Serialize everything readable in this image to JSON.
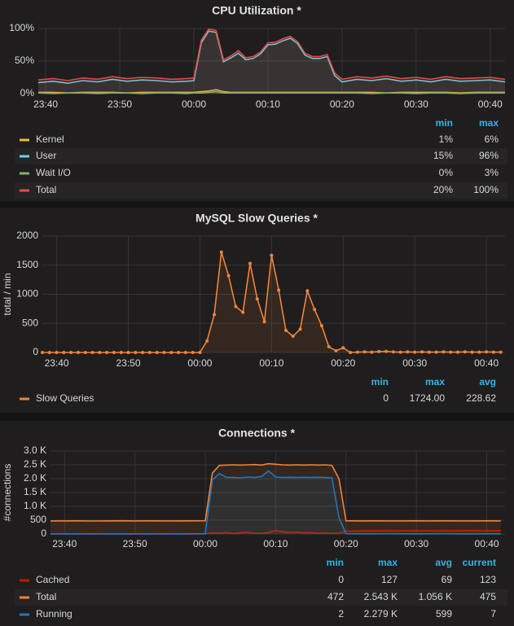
{
  "chart_data": [
    {
      "type": "line",
      "title": "CPU Utilization *",
      "x": [
        -21,
        -19,
        -17,
        -15,
        -13,
        -11,
        -9,
        -7,
        -5,
        -3,
        -1,
        0,
        1,
        2,
        3,
        4,
        5,
        6,
        7,
        8,
        9,
        10,
        11,
        12,
        13,
        14,
        15,
        16,
        17,
        18,
        19,
        20,
        22,
        24,
        26,
        28,
        30,
        32,
        34,
        36,
        38,
        40,
        42
      ],
      "xlim": [
        -21,
        42
      ],
      "xticks": [
        {
          "value": -20,
          "label": "23:40"
        },
        {
          "value": -10,
          "label": "23:50"
        },
        {
          "value": 0,
          "label": "00:00"
        },
        {
          "value": 10,
          "label": "00:10"
        },
        {
          "value": 20,
          "label": "00:20"
        },
        {
          "value": 30,
          "label": "00:30"
        },
        {
          "value": 40,
          "label": "00:40"
        }
      ],
      "ylim": [
        0,
        100
      ],
      "yticks": [
        {
          "value": 0,
          "label": "0%"
        },
        {
          "value": 50,
          "label": "50%"
        },
        {
          "value": 100,
          "label": "100%"
        }
      ],
      "grid": true,
      "legend": {
        "columns": [
          "min",
          "max"
        ]
      },
      "series": [
        {
          "name": "Kernel",
          "color": "#eab839",
          "legend_values": [
            "1%",
            "6%"
          ],
          "values": [
            2,
            2,
            1,
            2,
            2,
            2,
            1,
            2,
            2,
            2,
            2,
            2,
            3,
            4,
            6,
            3,
            2,
            2,
            2,
            2,
            2,
            2,
            2,
            2,
            2,
            2,
            2,
            2,
            2,
            2,
            2,
            2,
            2,
            2,
            1,
            2,
            2,
            2,
            2,
            1,
            2,
            2,
            2
          ]
        },
        {
          "name": "User",
          "color": "#6ed0e0",
          "legend_values": [
            "15%",
            "96%"
          ],
          "values": [
            17,
            19,
            16,
            20,
            18,
            22,
            19,
            21,
            20,
            18,
            19,
            20,
            78,
            96,
            94,
            49,
            55,
            62,
            52,
            54,
            61,
            75,
            76,
            81,
            85,
            77,
            59,
            54,
            54,
            57,
            28,
            18,
            22,
            20,
            23,
            19,
            21,
            18,
            22,
            19,
            20,
            21,
            18
          ]
        },
        {
          "name": "Wait I/O",
          "color": "#7eb26d",
          "legend_values": [
            "0%",
            "3%"
          ],
          "values": [
            1,
            0,
            1,
            1,
            0,
            1,
            1,
            0,
            1,
            1,
            0,
            1,
            1,
            2,
            3,
            1,
            1,
            1,
            1,
            1,
            1,
            1,
            1,
            1,
            1,
            1,
            1,
            1,
            1,
            1,
            1,
            1,
            1,
            0,
            1,
            1,
            0,
            1,
            1,
            0,
            1,
            1,
            1
          ]
        },
        {
          "name": "Total",
          "color": "#e24d42",
          "legend_values": [
            "20%",
            "100%"
          ],
          "values": [
            21,
            23,
            20,
            24,
            22,
            26,
            23,
            25,
            24,
            22,
            23,
            24,
            82,
            99,
            97,
            52,
            58,
            66,
            55,
            57,
            64,
            78,
            79,
            84,
            88,
            80,
            62,
            57,
            57,
            60,
            32,
            22,
            26,
            24,
            27,
            23,
            25,
            22,
            26,
            23,
            24,
            25,
            22
          ]
        }
      ]
    },
    {
      "type": "line",
      "title": "MySQL Slow Queries *",
      "y_label": "total / min",
      "points": true,
      "x": [
        -22,
        -21,
        -20,
        -19,
        -18,
        -17,
        -16,
        -15,
        -14,
        -13,
        -12,
        -11,
        -10,
        -9,
        -8,
        -7,
        -6,
        -5,
        -4,
        -3,
        -2,
        -1,
        0,
        1,
        2,
        3,
        4,
        5,
        6,
        7,
        8,
        9,
        10,
        11,
        12,
        13,
        14,
        15,
        16,
        17,
        18,
        19,
        20,
        21,
        22,
        23,
        24,
        25,
        26,
        27,
        28,
        29,
        30,
        31,
        32,
        33,
        34,
        35,
        36,
        37,
        38,
        39,
        40,
        41,
        42
      ],
      "xlim": [
        -22,
        42.6
      ],
      "xticks": [
        {
          "value": -20,
          "label": "23:40"
        },
        {
          "value": -10,
          "label": "23:50"
        },
        {
          "value": 0,
          "label": "00:00"
        },
        {
          "value": 10,
          "label": "00:10"
        },
        {
          "value": 20,
          "label": "00:20"
        },
        {
          "value": 30,
          "label": "00:30"
        },
        {
          "value": 40,
          "label": "00:40"
        }
      ],
      "ylim": [
        0,
        2000
      ],
      "yticks": [
        0,
        500,
        1000,
        1500,
        2000
      ],
      "grid": true,
      "legend": {
        "columns": [
          "min",
          "max",
          "avg"
        ]
      },
      "series": [
        {
          "name": "Slow Queries",
          "color": "#ef843c",
          "legend_values": [
            0,
            "1724.00",
            228.62
          ],
          "values": [
            0,
            0,
            0,
            0,
            0,
            0,
            0,
            0,
            0,
            0,
            0,
            0,
            0,
            0,
            0,
            0,
            0,
            0,
            0,
            0,
            0,
            0,
            0,
            200,
            650,
            1724,
            1320,
            790,
            690,
            1530,
            920,
            530,
            1670,
            1070,
            380,
            280,
            400,
            1060,
            740,
            460,
            100,
            30,
            80,
            0,
            5,
            10,
            5,
            15,
            20,
            10,
            5,
            10,
            5,
            10,
            5,
            5,
            10,
            5,
            5,
            10,
            5,
            5,
            10,
            5,
            5
          ]
        }
      ]
    },
    {
      "type": "line",
      "title": "Connections *",
      "y_label": "#connections",
      "x": [
        -22,
        -20,
        -18,
        -16,
        -14,
        -12,
        -10,
        -8,
        -6,
        -4,
        -2,
        0,
        1,
        2,
        3,
        4,
        5,
        6,
        7,
        8,
        9,
        10,
        11,
        12,
        13,
        14,
        15,
        16,
        17,
        18,
        19,
        20,
        22,
        24,
        26,
        28,
        30,
        32,
        34,
        36,
        38,
        40,
        42
      ],
      "xlim": [
        -22,
        42.6
      ],
      "xticks": [
        {
          "value": -20,
          "label": "23:40"
        },
        {
          "value": -10,
          "label": "23:50"
        },
        {
          "value": 0,
          "label": "00:00"
        },
        {
          "value": 10,
          "label": "00:10"
        },
        {
          "value": 20,
          "label": "00:20"
        },
        {
          "value": 30,
          "label": "00:30"
        },
        {
          "value": 40,
          "label": "00:40"
        }
      ],
      "ylim": [
        0,
        3000
      ],
      "yticks": [
        0,
        500,
        {
          "value": 1000,
          "label": "1.0 K"
        },
        {
          "value": 1500,
          "label": "1.5 K"
        },
        {
          "value": 2000,
          "label": "2.0 K"
        },
        {
          "value": 2500,
          "label": "2.5 K"
        },
        {
          "value": 3000,
          "label": "3.0 K"
        }
      ],
      "grid": true,
      "legend": {
        "columns": [
          "min",
          "max",
          "avg",
          "current"
        ]
      },
      "series": [
        {
          "name": "Cached",
          "color": "#bf1b00",
          "legend_values": [
            0,
            127,
            69,
            123
          ],
          "values": [
            0,
            2,
            0,
            3,
            0,
            2,
            0,
            1,
            0,
            2,
            0,
            10,
            40,
            30,
            50,
            20,
            40,
            60,
            30,
            20,
            50,
            127,
            80,
            60,
            70,
            40,
            50,
            30,
            40,
            20,
            30,
            100,
            110,
            115,
            120,
            118,
            122,
            119,
            121,
            120,
            123,
            118,
            123
          ]
        },
        {
          "name": "Total",
          "color": "#ef843c",
          "legend_values": [
            472,
            "2.543 K",
            "1.056 K",
            475
          ],
          "values": [
            475,
            474,
            476,
            472,
            475,
            478,
            474,
            476,
            475,
            473,
            476,
            480,
            2200,
            2480,
            2490,
            2500,
            2490,
            2500,
            2510,
            2490,
            2543,
            2520,
            2500,
            2490,
            2500,
            2490,
            2500,
            2490,
            2500,
            2480,
            2000,
            480,
            475,
            476,
            474,
            475,
            477,
            474,
            476,
            475,
            474,
            476,
            475
          ]
        },
        {
          "name": "Running",
          "color": "#1f78c1",
          "legend_values": [
            2,
            "2.279 K",
            599,
            7
          ],
          "values": [
            5,
            4,
            3,
            5,
            2,
            4,
            6,
            3,
            5,
            4,
            5,
            5,
            1950,
            2180,
            2050,
            2040,
            2030,
            2060,
            2040,
            2080,
            2279,
            2060,
            2040,
            2050,
            2040,
            2050,
            2040,
            2050,
            2040,
            2030,
            600,
            8,
            7,
            6,
            8,
            5,
            7,
            6,
            8,
            7,
            6,
            5,
            7
          ]
        }
      ]
    }
  ]
}
